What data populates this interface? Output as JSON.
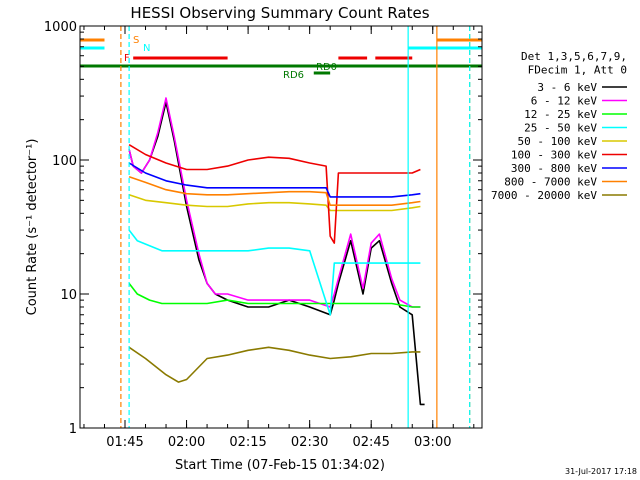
{
  "colors": {
    "black": "#000000",
    "magenta": "#ff00ff",
    "green": "#00ff00",
    "cyan": "#00ffff",
    "yellow": "#d8c800",
    "red": "#ee0000",
    "blue": "#0000ff",
    "orange": "#ff8000",
    "olive": "#8a7a00",
    "darkgreen": "#007800"
  },
  "chart_data": {
    "type": "line",
    "title": "HESSI Observing Summary Count Rates",
    "xlabel": "Start Time (07-Feb-15 01:34:02)",
    "ylabel": "Count Rate (s⁻¹ detector⁻¹)",
    "y_scale": "log",
    "ylim": [
      1,
      1000
    ],
    "xlim": [
      "01:34:02",
      "03:12:00"
    ],
    "x_ticks": [
      "01:45",
      "02:00",
      "02:15",
      "02:30",
      "02:45",
      "03:00"
    ],
    "y_ticks": [
      "1",
      "10",
      "100",
      "1000"
    ],
    "legend": {
      "position": "right",
      "header": [
        "Det 1,3,5,6,7,9,",
        "FDecim 1, Att 0"
      ]
    },
    "series": [
      {
        "name": "3 - 6 keV",
        "color": "black",
        "x": [
          1.7667,
          1.7833,
          1.8167,
          1.85,
          1.8833,
          1.9167,
          1.95,
          2.0,
          2.05,
          2.0833,
          2.1167,
          2.1667,
          2.25,
          2.3333,
          2.4167,
          2.5,
          2.5833,
          2.6,
          2.6167,
          2.6667,
          2.7167,
          2.75,
          2.7833,
          2.8333,
          2.8667,
          2.9167,
          2.95,
          2.9667
        ],
        "y": [
          120,
          90,
          80,
          100,
          150,
          270,
          140,
          45,
          18,
          12,
          10,
          9,
          8,
          8,
          9,
          8,
          7,
          9,
          12,
          25,
          10,
          22,
          25,
          12,
          8,
          7,
          1.5,
          1.5
        ]
      },
      {
        "name": "6 - 12 keV",
        "color": "magenta",
        "x": [
          1.7667,
          1.7833,
          1.8167,
          1.85,
          1.8833,
          1.9167,
          1.95,
          2.0,
          2.05,
          2.0833,
          2.1167,
          2.1667,
          2.25,
          2.3333,
          2.4167,
          2.5,
          2.5833,
          2.6,
          2.6167,
          2.6667,
          2.7167,
          2.75,
          2.7833,
          2.8333,
          2.8667,
          2.9167,
          2.95
        ],
        "y": [
          120,
          90,
          80,
          100,
          160,
          290,
          150,
          50,
          20,
          12,
          10,
          10,
          9,
          9,
          9,
          9,
          8,
          10,
          13,
          28,
          11,
          24,
          28,
          13,
          9,
          8,
          8
        ]
      },
      {
        "name": "12 - 25 keV",
        "color": "green",
        "x": [
          1.7667,
          1.8,
          1.85,
          1.9,
          2.0,
          2.0833,
          2.1667,
          2.25,
          2.3333,
          2.4167,
          2.5,
          2.5833,
          2.6,
          2.6667,
          2.75,
          2.8333,
          2.9167,
          2.95
        ],
        "y": [
          12,
          10,
          9,
          8.5,
          8.5,
          8.5,
          9,
          8.5,
          8.5,
          8.5,
          8.5,
          8.5,
          8.5,
          8.5,
          8.5,
          8.5,
          8,
          8
        ]
      },
      {
        "name": "25 - 50 keV",
        "color": "cyan",
        "x": [
          1.7667,
          1.8,
          1.9,
          2.0,
          2.1667,
          2.25,
          2.3333,
          2.4167,
          2.5,
          2.5833,
          2.6,
          2.6667,
          2.75,
          2.8333,
          2.9167,
          2.95
        ],
        "y": [
          30,
          25,
          21,
          21,
          21,
          21,
          22,
          22,
          21,
          7,
          17,
          17,
          17,
          17,
          17,
          17
        ]
      },
      {
        "name": "50 - 100 keV",
        "color": "yellow",
        "x": [
          1.7667,
          1.8333,
          1.9167,
          2.0,
          2.0833,
          2.1667,
          2.25,
          2.3333,
          2.4167,
          2.5,
          2.5667,
          2.5833,
          2.6667,
          2.75,
          2.8333,
          2.9167,
          2.95
        ],
        "y": [
          55,
          50,
          48,
          46,
          45,
          45,
          47,
          48,
          48,
          47,
          46,
          42,
          42,
          42,
          42,
          44,
          45
        ]
      },
      {
        "name": "100 - 300 keV",
        "color": "red",
        "x": [
          1.7667,
          1.8333,
          1.9167,
          2.0,
          2.0833,
          2.1667,
          2.25,
          2.3333,
          2.4167,
          2.5,
          2.5667,
          2.5833,
          2.6,
          2.6167,
          2.6667,
          2.75,
          2.8333,
          2.9167,
          2.95
        ],
        "y": [
          130,
          110,
          95,
          85,
          85,
          90,
          100,
          105,
          103,
          95,
          90,
          27,
          24,
          80,
          80,
          80,
          80,
          80,
          85
        ]
      },
      {
        "name": "300 - 800 keV",
        "color": "blue",
        "x": [
          1.7667,
          1.8333,
          1.9167,
          2.0,
          2.0833,
          2.1667,
          2.25,
          2.3333,
          2.4167,
          2.5,
          2.5667,
          2.5833,
          2.6667,
          2.75,
          2.8333,
          2.9167,
          2.95
        ],
        "y": [
          95,
          80,
          70,
          65,
          62,
          62,
          62,
          62,
          62,
          62,
          62,
          53,
          53,
          53,
          53,
          55,
          56
        ]
      },
      {
        "name": "800 - 7000 keV",
        "color": "orange",
        "x": [
          1.7667,
          1.8333,
          1.9167,
          2.0,
          2.0833,
          2.1667,
          2.25,
          2.3333,
          2.4167,
          2.5,
          2.5667,
          2.5833,
          2.6667,
          2.75,
          2.8333,
          2.9167,
          2.95
        ],
        "y": [
          75,
          68,
          60,
          56,
          55,
          55,
          56,
          57,
          58,
          58,
          57,
          46,
          46,
          46,
          46,
          48,
          49
        ]
      },
      {
        "name": "7000 - 20000 keV",
        "color": "olive",
        "x": [
          1.7667,
          1.8333,
          1.9167,
          1.9667,
          2.0,
          2.0833,
          2.1667,
          2.25,
          2.3333,
          2.4167,
          2.5,
          2.5833,
          2.6667,
          2.75,
          2.8333,
          2.9167,
          2.95
        ],
        "y": [
          4,
          3.3,
          2.5,
          2.2,
          2.3,
          3.3,
          3.5,
          3.8,
          4,
          3.8,
          3.5,
          3.3,
          3.4,
          3.6,
          3.6,
          3.7,
          3.7
        ]
      }
    ],
    "flag_labels": {
      "S": "S",
      "N": "N",
      "F": "F",
      "RD6": "RD6",
      "RD0": "RD0"
    },
    "flag_bars": [
      {
        "flag": "S",
        "color": "orange",
        "level": 40,
        "segments": [
          [
            1.5672,
            1.6667
          ],
          [
            3.0167,
            3.2
          ]
        ]
      },
      {
        "flag": "N",
        "color": "cyan",
        "level": 48,
        "segments": [
          [
            1.5672,
            1.6667
          ],
          [
            2.9,
            3.2
          ]
        ]
      },
      {
        "flag": "F",
        "color": "red",
        "level": 58,
        "segments": [
          [
            1.7833,
            2.1667
          ],
          [
            2.6167,
            2.7333
          ],
          [
            2.7667,
            2.9167
          ]
        ]
      },
      {
        "flag": "RD0",
        "color": "darkgreen",
        "level": 66,
        "segments": [
          [
            1.5672,
            3.2
          ]
        ]
      },
      {
        "flag": "RD6",
        "color": "darkgreen",
        "level": 73,
        "segments": [
          [
            2.5167,
            2.5833
          ]
        ]
      }
    ],
    "vertical_lines": [
      {
        "color": "orange",
        "x": 1.7333,
        "dashed": true
      },
      {
        "color": "cyan",
        "x": 1.7667,
        "dashed": true
      },
      {
        "color": "cyan",
        "x": 2.9,
        "dashed": false
      },
      {
        "color": "orange",
        "x": 3.0167,
        "dashed": false
      },
      {
        "color": "orange",
        "x": 3.15,
        "dashed": true
      },
      {
        "color": "cyan",
        "x": 3.15,
        "dashed": true
      }
    ]
  },
  "footer": {
    "date_stamp": "31-Jul-2017 17:18"
  }
}
